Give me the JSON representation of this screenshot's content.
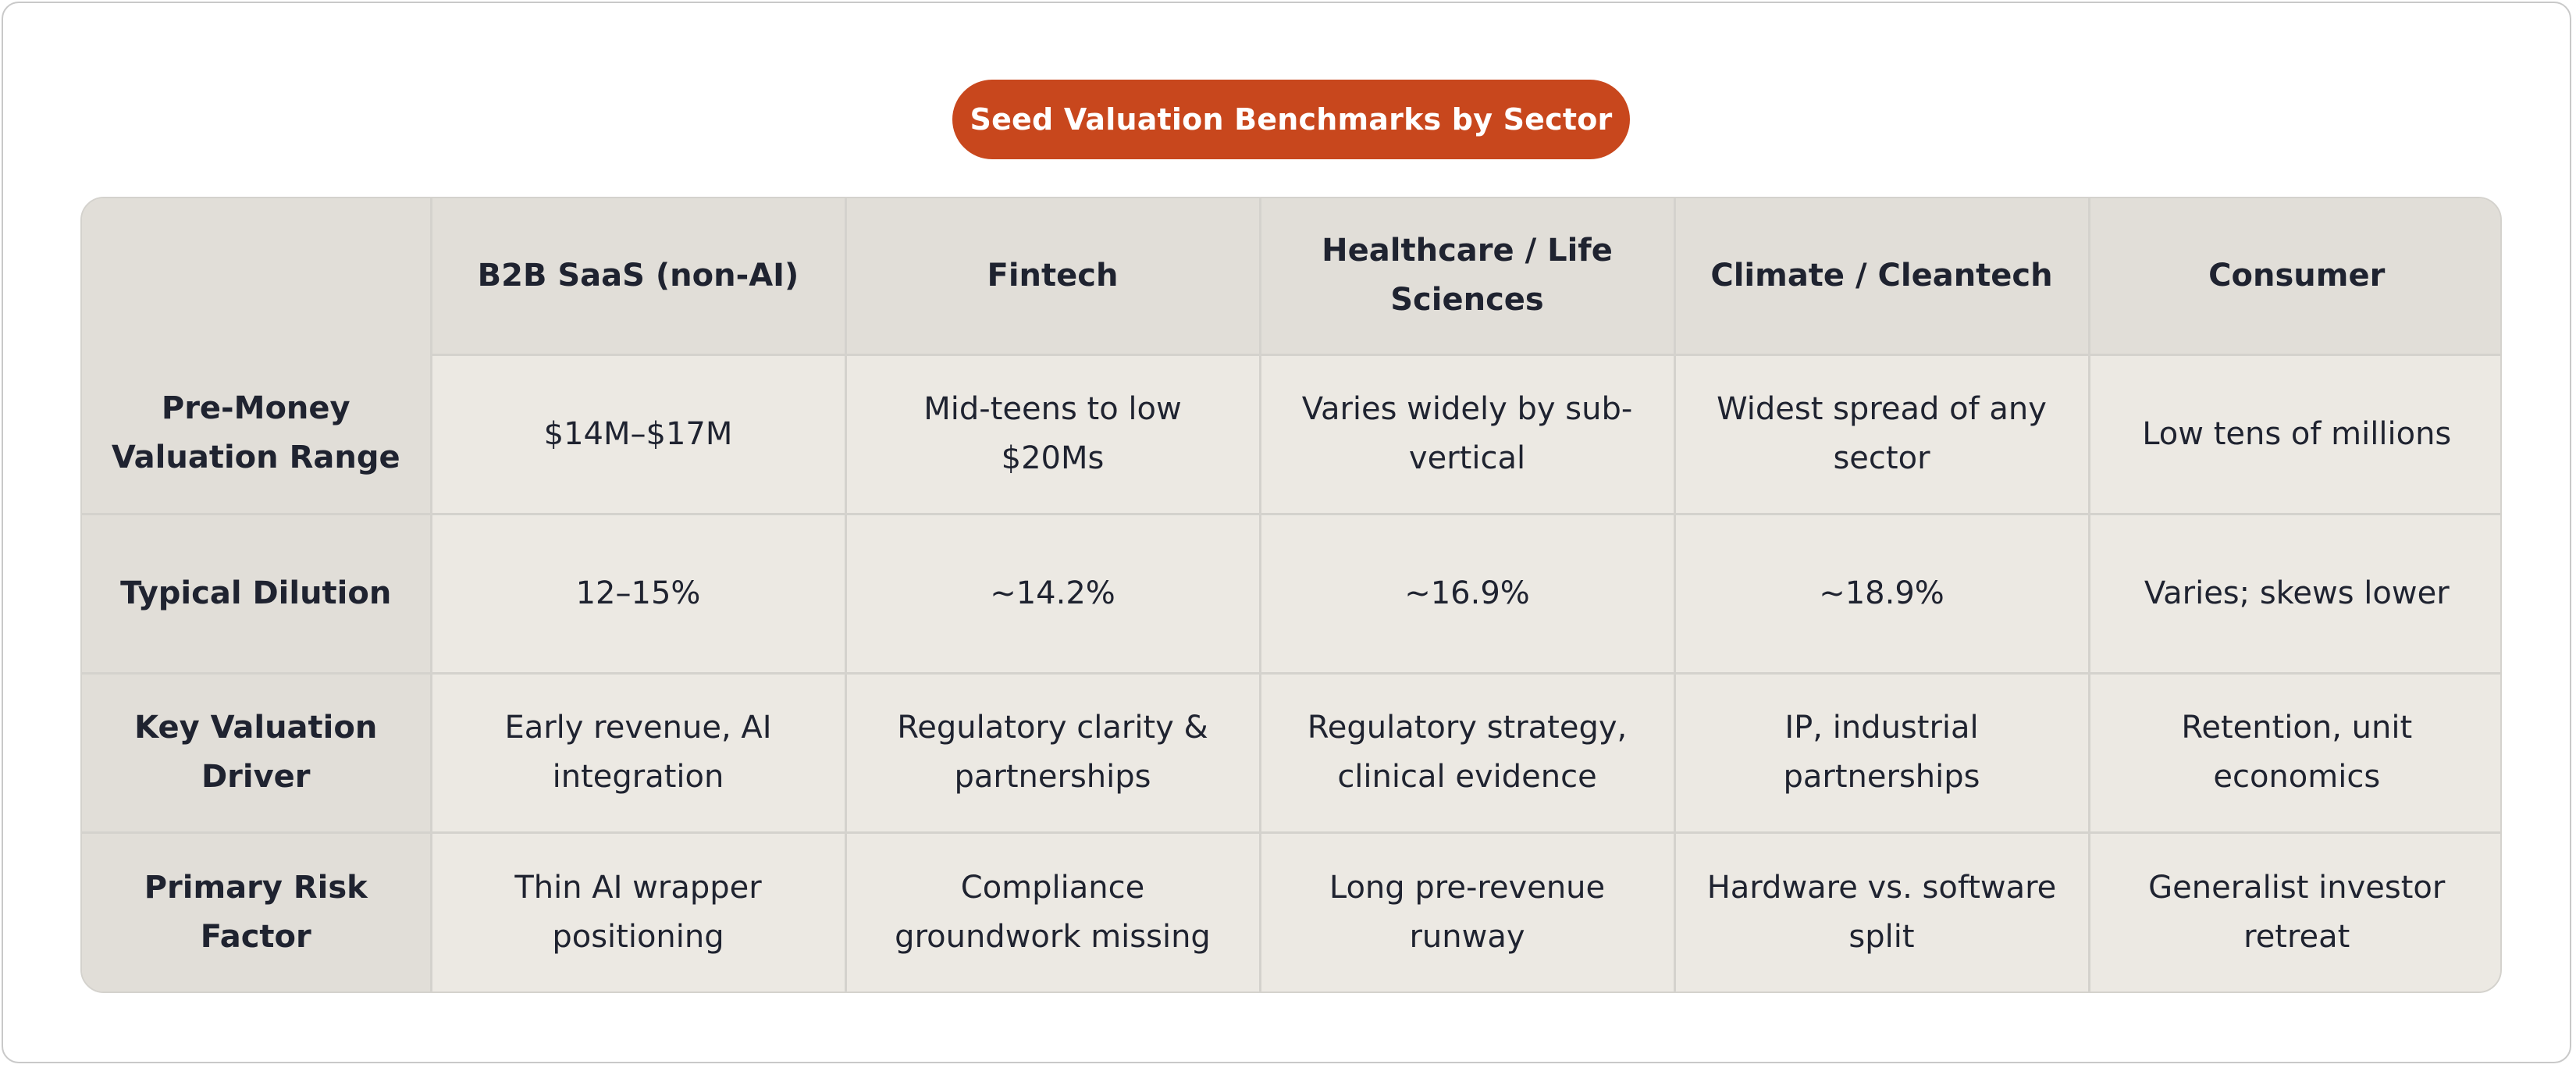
{
  "title": "Seed Valuation Benchmarks by Sector",
  "colors": {
    "title_bg": "#c8471d",
    "title_text": "#ffffff",
    "header_bg": "#e1ded8",
    "cell_bg": "#ece9e3",
    "grid_line": "#d4d2cd",
    "text": "#1f2330"
  },
  "table": {
    "corner": "",
    "columns": [
      "B2B SaaS (non-AI)",
      "Fintech",
      "Healthcare / Life Sciences",
      "Climate / Cleantech",
      "Consumer"
    ],
    "rows": [
      {
        "label": "Pre-Money Valuation Range",
        "cells": [
          "$14M–$17M",
          "Mid-teens to low $20Ms",
          "Varies widely by sub-vertical",
          "Widest spread of any sector",
          "Low tens of millions"
        ]
      },
      {
        "label": "Typical Dilution",
        "cells": [
          "12–15%",
          "~14.2%",
          "~16.9%",
          "~18.9%",
          "Varies; skews lower"
        ]
      },
      {
        "label": "Key Valuation Driver",
        "cells": [
          "Early revenue, AI integration",
          "Regulatory clarity & partnerships",
          "Regulatory strategy, clinical evidence",
          "IP, industrial partnerships",
          "Retention, unit economics"
        ]
      },
      {
        "label": "Primary Risk Factor",
        "cells": [
          "Thin AI wrapper positioning",
          "Compliance groundwork missing",
          "Long pre-revenue runway",
          "Hardware vs. software split",
          "Generalist investor retreat"
        ]
      }
    ]
  }
}
